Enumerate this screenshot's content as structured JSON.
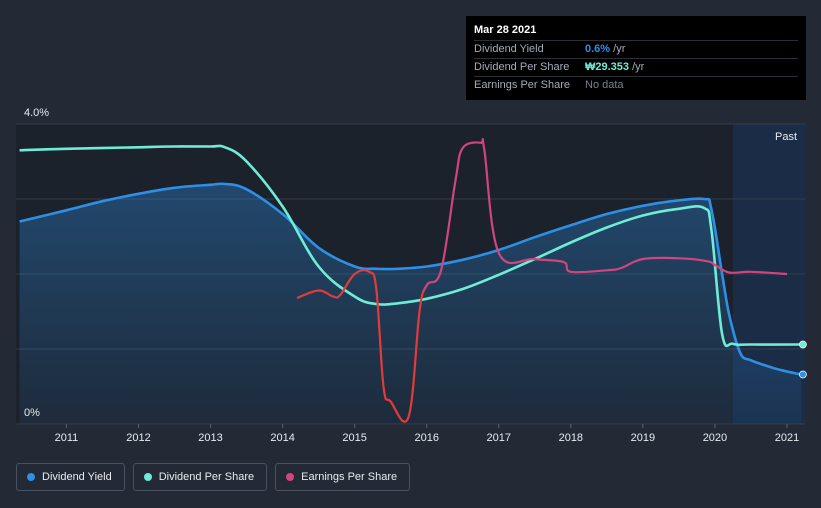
{
  "tooltip": {
    "date": "Mar 28 2021",
    "rows": [
      {
        "label": "Dividend Yield",
        "value": "0.6%",
        "suffix": " /yr"
      },
      {
        "label": "Dividend Per Share",
        "value": "₩29.353",
        "suffix": " /yr"
      },
      {
        "label": "Earnings Per Share",
        "value": "No data",
        "suffix": ""
      }
    ]
  },
  "legend": {
    "dividend_yield": "Dividend Yield",
    "dividend_per_share": "Dividend Per Share",
    "earnings_per_share": "Earnings Per Share"
  },
  "colors": {
    "background": "#232a36",
    "plot_bg": "#1c222c",
    "dividend_yield": "#2d8fe6",
    "dividend_per_share": "#6eecd6",
    "earnings_per_share": "#d0457f",
    "earnings_negative": "#e23b3b",
    "past_region": "#1b3a66"
  },
  "chart_data": {
    "type": "line",
    "title": "",
    "xlabel": "",
    "ylabel": "",
    "xlim": [
      2010.3,
      2021.25
    ],
    "ylim": [
      0,
      4.0
    ],
    "y_tick_labels": [
      "4.0%",
      "0%"
    ],
    "x_ticks": [
      2011,
      2012,
      2013,
      2014,
      2015,
      2016,
      2017,
      2018,
      2019,
      2020,
      2021
    ],
    "region_label": "Past",
    "region_start": 2020.25,
    "series": [
      {
        "name": "Dividend Yield",
        "unit": "%",
        "filled": true,
        "x": [
          2010.35,
          2011.0,
          2011.5,
          2012.0,
          2012.5,
          2013.0,
          2013.2,
          2013.5,
          2014.0,
          2014.5,
          2015.0,
          2015.3,
          2015.6,
          2016.0,
          2016.5,
          2017.0,
          2017.5,
          2018.0,
          2018.5,
          2019.0,
          2019.4,
          2019.85,
          2019.95,
          2020.1,
          2020.2,
          2020.35,
          2020.5,
          2020.8,
          2021.0,
          2021.2
        ],
        "values": [
          2.7,
          2.85,
          2.97,
          3.07,
          3.15,
          3.19,
          3.2,
          3.13,
          2.8,
          2.35,
          2.1,
          2.07,
          2.07,
          2.1,
          2.19,
          2.32,
          2.49,
          2.65,
          2.8,
          2.91,
          2.97,
          3.0,
          2.87,
          2.0,
          1.45,
          0.95,
          0.85,
          0.75,
          0.7,
          0.66
        ]
      },
      {
        "name": "Dividend Per Share",
        "unit": "%",
        "filled": false,
        "x": [
          2010.35,
          2011.0,
          2012.0,
          2012.5,
          2013.0,
          2013.2,
          2013.5,
          2014.0,
          2014.5,
          2015.0,
          2015.3,
          2015.6,
          2016.0,
          2016.5,
          2017.0,
          2017.5,
          2018.0,
          2018.5,
          2019.0,
          2019.5,
          2019.85,
          2019.95,
          2020.1,
          2020.25,
          2020.5,
          2021.2
        ],
        "values": [
          3.65,
          3.67,
          3.69,
          3.7,
          3.7,
          3.69,
          3.5,
          2.9,
          2.1,
          1.7,
          1.6,
          1.61,
          1.67,
          1.8,
          1.99,
          2.2,
          2.42,
          2.62,
          2.78,
          2.87,
          2.88,
          2.6,
          1.2,
          1.07,
          1.06,
          1.06
        ]
      },
      {
        "name": "Earnings Per Share",
        "unit": "%",
        "filled": false,
        "x": [
          2014.2,
          2014.5,
          2014.7,
          2014.8,
          2015.0,
          2015.2,
          2015.3,
          2015.4,
          2015.5,
          2015.75,
          2015.9,
          2016.0,
          2016.2,
          2016.4,
          2016.5,
          2016.75,
          2016.8,
          2017.0,
          2017.5,
          2017.9,
          2018.0,
          2018.5,
          2018.7,
          2019.0,
          2019.5,
          2019.9,
          2020.0,
          2020.2,
          2020.5,
          2021.0
        ],
        "values": [
          1.68,
          1.78,
          1.7,
          1.72,
          2.0,
          2.03,
          1.8,
          0.5,
          0.3,
          0.1,
          1.5,
          1.85,
          2.05,
          3.25,
          3.68,
          3.75,
          3.65,
          2.28,
          2.2,
          2.16,
          2.03,
          2.05,
          2.08,
          2.2,
          2.21,
          2.17,
          2.12,
          2.02,
          2.03,
          2.0
        ]
      }
    ],
    "legend_position": "bottom-left"
  }
}
